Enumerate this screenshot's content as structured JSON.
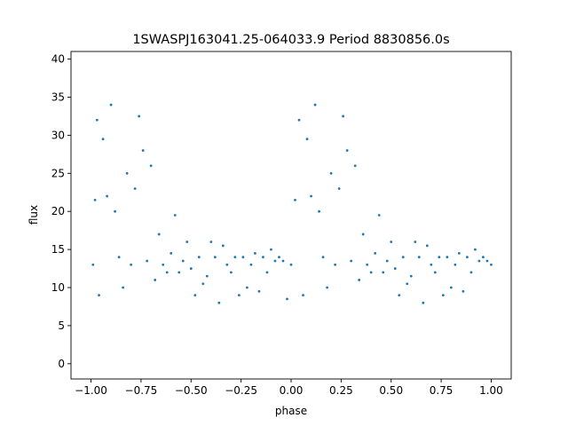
{
  "chart_data": {
    "type": "scatter",
    "title": "1SWASPJ163041.25-064033.9 Period 8830856.0s",
    "xlabel": "phase",
    "ylabel": "flux",
    "xlim": [
      -1.1,
      1.1
    ],
    "ylim": [
      -2.0,
      41.0
    ],
    "x_ticks": [
      -1.0,
      -0.75,
      -0.5,
      -0.25,
      0.0,
      0.25,
      0.5,
      0.75,
      1.0
    ],
    "x_tick_labels": [
      "−1.00",
      "−0.75",
      "−0.50",
      "−0.25",
      "0.00",
      "0.25",
      "0.50",
      "0.75",
      "1.00"
    ],
    "y_ticks": [
      0,
      5,
      10,
      15,
      20,
      25,
      30,
      35,
      40
    ],
    "y_tick_labels": [
      "0",
      "5",
      "10",
      "15",
      "20",
      "25",
      "30",
      "35",
      "40"
    ],
    "grid": false,
    "legend": "none",
    "marker_color": "#1f77b4",
    "series": [
      {
        "x": [
          -0.99,
          -0.98,
          -0.97,
          -0.96,
          -0.94,
          -0.92,
          -0.9,
          -0.88,
          -0.86,
          -0.84,
          -0.82,
          -0.8,
          -0.78,
          -0.76,
          -0.74,
          -0.72,
          -0.7,
          -0.68,
          -0.66,
          -0.64,
          -0.62,
          -0.6,
          -0.58,
          -0.56,
          -0.54,
          -0.52,
          -0.5,
          -0.48,
          -0.46,
          -0.44,
          -0.42,
          -0.4,
          -0.38,
          -0.36,
          -0.34,
          -0.32,
          -0.3,
          -0.28,
          -0.26,
          -0.24,
          -0.22,
          -0.2,
          -0.18,
          -0.16,
          -0.14,
          -0.12,
          -0.1,
          -0.08,
          -0.06,
          -0.04,
          -0.02,
          0.0,
          0.02,
          0.04,
          0.06,
          0.08,
          0.1,
          0.12,
          0.14,
          0.16,
          0.18,
          0.2,
          0.22,
          0.24,
          0.26,
          0.28,
          0.3,
          0.32,
          0.34,
          0.36,
          0.38,
          0.4,
          0.42,
          0.44,
          0.46,
          0.48,
          0.5,
          0.52,
          0.54,
          0.56,
          0.58,
          0.6,
          0.62,
          0.64,
          0.66,
          0.68,
          0.7,
          0.72,
          0.74,
          0.76,
          0.78,
          0.8,
          0.82,
          0.84,
          0.86,
          0.88,
          0.9,
          0.92,
          0.94,
          0.96,
          0.98,
          1.0
        ],
        "y": [
          13.0,
          21.5,
          32.0,
          9.0,
          29.5,
          22.0,
          34.0,
          20.0,
          14.0,
          10.0,
          25.0,
          13.0,
          23.0,
          32.5,
          28.0,
          13.5,
          26.0,
          11.0,
          17.0,
          13.0,
          12.0,
          14.5,
          19.5,
          12.0,
          13.5,
          16.0,
          12.5,
          9.0,
          14.0,
          10.5,
          11.5,
          16.0,
          14.0,
          8.0,
          15.5,
          13.0,
          12.0,
          14.0,
          9.0,
          14.0,
          10.0,
          13.0,
          14.5,
          9.5,
          14.0,
          12.0,
          15.0,
          13.5,
          14.0,
          13.5,
          8.5,
          13.0,
          21.5,
          32.0,
          9.0,
          29.5,
          22.0,
          34.0,
          20.0,
          14.0,
          10.0,
          25.0,
          13.0,
          23.0,
          32.5,
          28.0,
          13.5,
          26.0,
          11.0,
          17.0,
          13.0,
          12.0,
          14.5,
          19.5,
          12.0,
          13.5,
          16.0,
          12.5,
          9.0,
          14.0,
          10.5,
          11.5,
          16.0,
          14.0,
          8.0,
          15.5,
          13.0,
          12.0,
          14.0,
          9.0,
          14.0,
          10.0,
          13.0,
          14.5,
          9.5,
          14.0,
          12.0,
          15.0,
          13.5,
          14.0,
          13.5,
          13.0
        ]
      }
    ]
  }
}
